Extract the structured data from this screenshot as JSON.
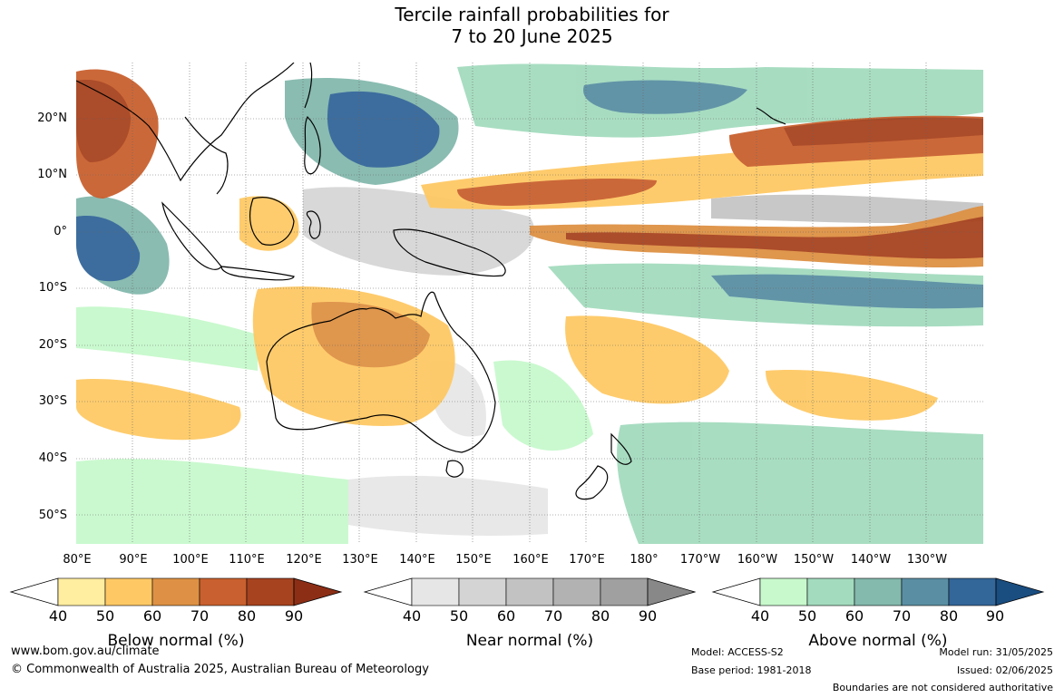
{
  "title": {
    "line1": "Tercile rainfall probabilities for",
    "line2": "7 to 20 June 2025"
  },
  "map": {
    "lat_labels": [
      "20°N",
      "10°N",
      "0°",
      "10°S",
      "20°S",
      "30°S",
      "40°S",
      "50°S"
    ],
    "lon_labels": [
      "80°E",
      "90°E",
      "100°E",
      "110°E",
      "120°E",
      "130°E",
      "140°E",
      "150°E",
      "160°E",
      "170°E",
      "180°",
      "170°W",
      "160°W",
      "150°W",
      "140°W",
      "130°W"
    ]
  },
  "legends": [
    {
      "title": "Below normal (%)",
      "ticks": [
        "40",
        "50",
        "60",
        "70",
        "80",
        "90"
      ],
      "colors": [
        "#ffeda0",
        "#fec965",
        "#de9144",
        "#c9602f",
        "#a7431f",
        "#8c2e16"
      ]
    },
    {
      "title": "Near normal (%)",
      "ticks": [
        "40",
        "50",
        "60",
        "70",
        "80",
        "90"
      ],
      "colors": [
        "#e6e6e6",
        "#d4d4d4",
        "#c2c2c2",
        "#b2b2b2",
        "#a0a0a0",
        "#888888"
      ]
    },
    {
      "title": "Above normal (%)",
      "ticks": [
        "40",
        "50",
        "60",
        "70",
        "80",
        "90"
      ],
      "colors": [
        "#c7f9cc",
        "#a3dbbe",
        "#84b9ad",
        "#5a8fa3",
        "#336699",
        "#1a4d80"
      ]
    }
  ],
  "footer": {
    "website": "www.bom.gov.au/climate",
    "copyright": "© Commonwealth of Australia 2025, Australian Bureau of Meteorology",
    "model": "Model: ACCESS-S2",
    "base_period": "Base period: 1981-2018",
    "model_run": "Model run: 31/05/2025",
    "issued": "Issued: 02/06/2025",
    "boundaries": "Boundaries are not considered authoritative"
  }
}
